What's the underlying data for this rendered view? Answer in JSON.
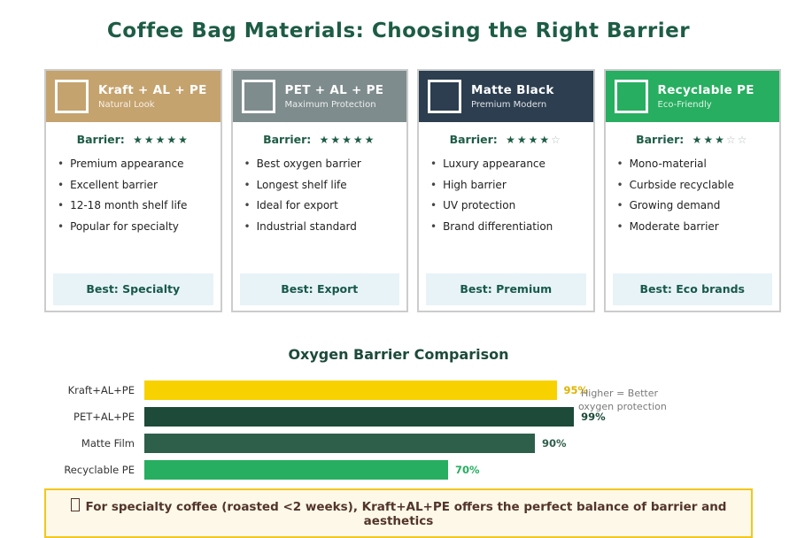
{
  "page_title": "Coffee Bag Materials: Choosing the Right Barrier",
  "labels": {
    "barrier": "Barrier:",
    "rating_max": 5
  },
  "cards": [
    {
      "title": "Kraft + AL + PE",
      "subtitle": "Natural Look",
      "header_color": "#c5a36e",
      "barrier_rating": 5,
      "features": [
        "Premium appearance",
        "Excellent barrier",
        "12-18 month shelf life",
        "Popular for specialty"
      ],
      "best": "Best: Specialty"
    },
    {
      "title": "PET + AL + PE",
      "subtitle": "Maximum Protection",
      "header_color": "#7f8c8d",
      "barrier_rating": 5,
      "features": [
        "Best oxygen barrier",
        "Longest shelf life",
        "Ideal for export",
        "Industrial standard"
      ],
      "best": "Best: Export"
    },
    {
      "title": "Matte Black",
      "subtitle": "Premium Modern",
      "header_color": "#2c3e50",
      "barrier_rating": 4,
      "features": [
        "Luxury appearance",
        "High barrier",
        "UV protection",
        "Brand differentiation"
      ],
      "best": "Best: Premium"
    },
    {
      "title": "Recyclable PE",
      "subtitle": "Eco-Friendly",
      "header_color": "#27ae60",
      "barrier_rating": 3,
      "features": [
        "Mono-material",
        "Curbside recyclable",
        "Growing demand",
        "Moderate barrier"
      ],
      "best": "Best: Eco brands"
    }
  ],
  "chart_data": {
    "type": "bar",
    "orientation": "horizontal",
    "title": "Oxygen Barrier Comparison",
    "categories": [
      "Kraft+AL+PE",
      "PET+AL+PE",
      "Matte Film",
      "Recyclable PE"
    ],
    "values": [
      95,
      99,
      90,
      70
    ],
    "value_labels": [
      "95%",
      "99%",
      "90%",
      "70%"
    ],
    "bar_colors": [
      "#f7d100",
      "#1d4a39",
      "#2e5f4b",
      "#27ae60"
    ],
    "label_colors": [
      "#e0b400",
      "#1d4a39",
      "#2e5f4b",
      "#27ae60"
    ],
    "xlim": [
      0,
      100
    ],
    "grid": false,
    "legend": "none",
    "annotation_lines": [
      "Higher = Better",
      "oxygen protection"
    ]
  },
  "note": {
    "icon": "missing-glyph",
    "text": "For specialty coffee (roasted <2 weeks), Kraft+AL+PE offers the perfect balance of barrier and aesthetics",
    "border_color": "#f2c71d",
    "bg_color": "#fdf8e7",
    "text_color": "#52342b"
  }
}
